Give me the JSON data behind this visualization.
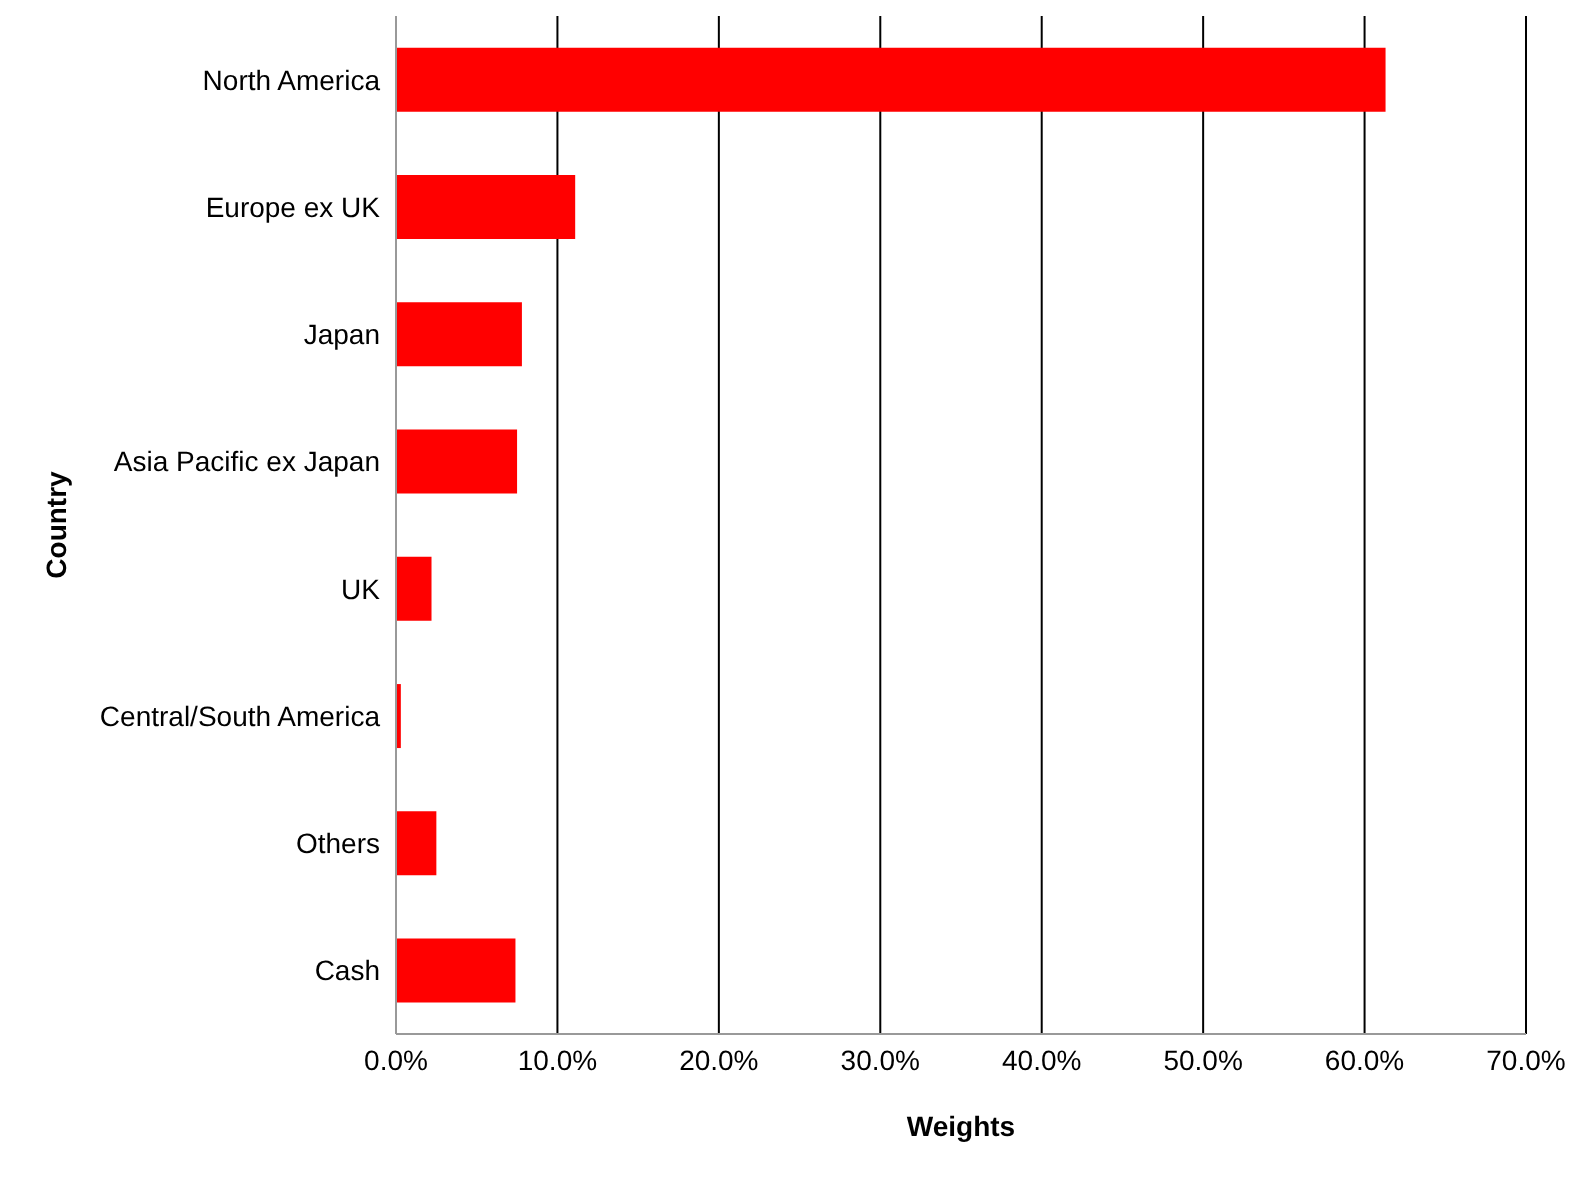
{
  "chart_data": {
    "type": "bar",
    "orientation": "horizontal",
    "xlabel": "Weights",
    "ylabel": "Country",
    "categories": [
      "North America",
      "Europe ex UK",
      "Japan",
      "Asia Pacific ex Japan",
      "UK",
      "Central/South America",
      "Others",
      "Cash"
    ],
    "values": [
      61.3,
      11.1,
      7.8,
      7.5,
      2.2,
      0.3,
      2.5,
      7.4
    ],
    "color": "#ff0000",
    "xlim": [
      0,
      70
    ],
    "xticks": [
      {
        "value": 0,
        "label": "0.0%"
      },
      {
        "value": 10,
        "label": "10.0%"
      },
      {
        "value": 20,
        "label": "20.0%"
      },
      {
        "value": 30,
        "label": "30.0%"
      },
      {
        "value": 40,
        "label": "40.0%"
      },
      {
        "value": 50,
        "label": "50.0%"
      },
      {
        "value": 60,
        "label": "60.0%"
      },
      {
        "value": 70,
        "label": "70.0%"
      }
    ],
    "grid": "x",
    "legend": false
  }
}
